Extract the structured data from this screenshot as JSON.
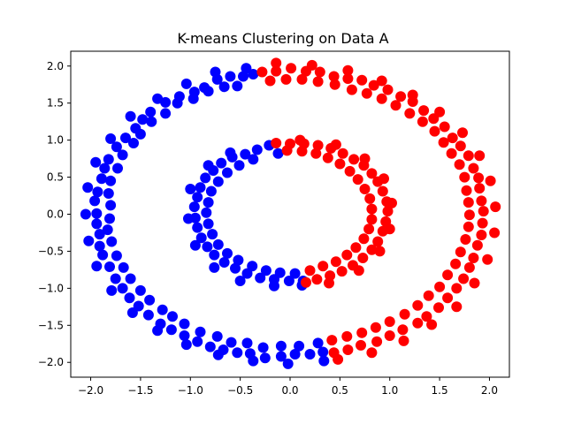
{
  "chart_data": {
    "type": "scatter",
    "title": "K-means Clustering on Data A",
    "xlabel": "",
    "ylabel": "",
    "xlim": [
      -2.2,
      2.2
    ],
    "ylim": [
      -2.2,
      2.2
    ],
    "xticks": [
      -2.0,
      -1.5,
      -1.0,
      -0.5,
      0.0,
      0.5,
      1.0,
      1.5,
      2.0
    ],
    "xtick_labels": [
      "−2.0",
      "−1.5",
      "−1.0",
      "−0.5",
      "0.0",
      "0.5",
      "1.0",
      "1.5",
      "2.0"
    ],
    "yticks": [
      -2.0,
      -1.5,
      -1.0,
      -0.5,
      0.0,
      0.5,
      1.0,
      1.5,
      2.0
    ],
    "ytick_labels": [
      "−2.0",
      "−1.5",
      "−1.0",
      "−0.5",
      "0.0",
      "0.5",
      "1.0",
      "1.5",
      "2.0"
    ],
    "grid": false,
    "legend": "none",
    "series": [
      {
        "color": "#0000ff",
        "points": [
          [
            -0.37,
            1.89
          ],
          [
            -0.47,
            1.86
          ],
          [
            -0.6,
            1.86
          ],
          [
            -0.73,
            1.82
          ],
          [
            -0.86,
            1.71
          ],
          [
            -0.96,
            1.65
          ],
          [
            -1.11,
            1.59
          ],
          [
            -1.25,
            1.51
          ],
          [
            -1.4,
            1.38
          ],
          [
            -1.48,
            1.28
          ],
          [
            -1.55,
            1.16
          ],
          [
            -1.65,
            1.03
          ],
          [
            -1.74,
            0.91
          ],
          [
            -1.82,
            0.74
          ],
          [
            -1.86,
            0.62
          ],
          [
            -1.89,
            0.48
          ],
          [
            -1.93,
            0.3
          ],
          [
            -1.96,
            0.18
          ],
          [
            -1.94,
            0.01
          ],
          [
            -1.94,
            -0.13
          ],
          [
            -1.91,
            -0.27
          ],
          [
            -1.91,
            -0.43
          ],
          [
            -1.88,
            -0.55
          ],
          [
            -1.81,
            -0.71
          ],
          [
            -1.75,
            -0.87
          ],
          [
            -1.68,
            -1.0
          ],
          [
            -1.61,
            -1.13
          ],
          [
            -1.52,
            -1.24
          ],
          [
            -1.42,
            -1.36
          ],
          [
            -1.3,
            -1.48
          ],
          [
            -1.19,
            -1.56
          ],
          [
            -1.06,
            -1.64
          ],
          [
            -0.93,
            -1.72
          ],
          [
            -0.8,
            -1.79
          ],
          [
            -0.67,
            -1.83
          ],
          [
            -0.53,
            -1.87
          ],
          [
            -0.4,
            -1.88
          ],
          [
            -0.25,
            -1.94
          ],
          [
            -0.09,
            -1.92
          ],
          [
            0.05,
            -1.89
          ],
          [
            0.2,
            -1.89
          ],
          [
            0.33,
            -1.86
          ],
          [
            -0.53,
            1.73
          ],
          [
            -0.66,
            1.72
          ],
          [
            -0.82,
            1.66
          ],
          [
            -0.97,
            1.56
          ],
          [
            -1.13,
            1.5
          ],
          [
            -1.25,
            1.36
          ],
          [
            -1.39,
            1.25
          ],
          [
            -1.5,
            1.08
          ],
          [
            -1.57,
            0.96
          ],
          [
            -1.68,
            0.8
          ],
          [
            -1.73,
            0.62
          ],
          [
            -1.8,
            0.45
          ],
          [
            -1.82,
            0.28
          ],
          [
            -1.8,
            0.12
          ],
          [
            -1.81,
            -0.06
          ],
          [
            -1.83,
            -0.21
          ],
          [
            -1.79,
            -0.37
          ],
          [
            -1.74,
            -0.56
          ],
          [
            -1.67,
            -0.72
          ],
          [
            -1.6,
            -0.87
          ],
          [
            -1.5,
            -1.03
          ],
          [
            -1.41,
            -1.16
          ],
          [
            -1.28,
            -1.29
          ],
          [
            -1.18,
            -1.38
          ],
          [
            -1.06,
            -1.48
          ],
          [
            -0.9,
            -1.59
          ],
          [
            -0.73,
            -1.65
          ],
          [
            -0.59,
            -1.73
          ],
          [
            -0.43,
            -1.74
          ],
          [
            -0.27,
            -1.8
          ],
          [
            -0.09,
            -1.78
          ],
          [
            0.09,
            -1.78
          ],
          [
            0.28,
            -1.74
          ],
          [
            -0.44,
            1.97
          ],
          [
            -0.75,
            1.92
          ],
          [
            -1.04,
            1.76
          ],
          [
            -1.33,
            1.56
          ],
          [
            -1.6,
            1.32
          ],
          [
            -1.8,
            1.02
          ],
          [
            -1.95,
            0.7
          ],
          [
            -2.03,
            0.36
          ],
          [
            -2.05,
            0.0
          ],
          [
            -2.02,
            -0.36
          ],
          [
            -1.94,
            -0.7
          ],
          [
            -1.79,
            -1.03
          ],
          [
            -1.58,
            -1.33
          ],
          [
            -1.33,
            -1.57
          ],
          [
            -1.04,
            -1.76
          ],
          [
            -0.72,
            -1.9
          ],
          [
            -0.37,
            -1.98
          ],
          [
            -0.02,
            -2.02
          ],
          [
            0.34,
            -1.98
          ],
          [
            -0.33,
            0.87
          ],
          [
            -0.45,
            0.81
          ],
          [
            -0.58,
            0.77
          ],
          [
            -0.69,
            0.69
          ],
          [
            -0.77,
            0.59
          ],
          [
            -0.85,
            0.49
          ],
          [
            -0.9,
            0.36
          ],
          [
            -0.93,
            0.23
          ],
          [
            -0.96,
            0.1
          ],
          [
            -0.95,
            -0.05
          ],
          [
            -0.93,
            -0.18
          ],
          [
            -0.89,
            -0.32
          ],
          [
            -0.83,
            -0.44
          ],
          [
            -0.76,
            -0.55
          ],
          [
            -0.66,
            -0.65
          ],
          [
            -0.55,
            -0.73
          ],
          [
            -0.43,
            -0.8
          ],
          [
            -0.3,
            -0.86
          ],
          [
            -0.16,
            -0.88
          ],
          [
            -0.01,
            -0.9
          ],
          [
            0.13,
            -0.9
          ],
          [
            -0.21,
            0.93
          ],
          [
            -0.37,
            0.74
          ],
          [
            -0.51,
            0.66
          ],
          [
            -0.63,
            0.56
          ],
          [
            -0.72,
            0.44
          ],
          [
            -0.79,
            0.31
          ],
          [
            -0.82,
            0.16
          ],
          [
            -0.84,
            0.02
          ],
          [
            -0.82,
            -0.13
          ],
          [
            -0.78,
            -0.27
          ],
          [
            -0.72,
            -0.41
          ],
          [
            -0.63,
            -0.53
          ],
          [
            -0.52,
            -0.62
          ],
          [
            -0.38,
            -0.7
          ],
          [
            -0.24,
            -0.76
          ],
          [
            -0.1,
            -0.79
          ],
          [
            0.05,
            -0.8
          ],
          [
            -0.12,
            0.82
          ],
          [
            -0.6,
            0.83
          ],
          [
            -0.82,
            0.66
          ],
          [
            -1.0,
            0.34
          ],
          [
            -1.02,
            -0.06
          ],
          [
            -0.95,
            -0.42
          ],
          [
            -0.76,
            -0.72
          ],
          [
            -0.5,
            -0.9
          ],
          [
            -0.16,
            -0.97
          ],
          [
            0.12,
            -0.96
          ]
        ]
      },
      {
        "color": "#ff0000",
        "points": [
          [
            -0.28,
            1.92
          ],
          [
            -0.14,
            1.93
          ],
          [
            0.01,
            1.97
          ],
          [
            0.16,
            1.93
          ],
          [
            0.3,
            1.92
          ],
          [
            0.44,
            1.86
          ],
          [
            0.58,
            1.83
          ],
          [
            0.72,
            1.81
          ],
          [
            0.84,
            1.74
          ],
          [
            0.98,
            1.68
          ],
          [
            1.11,
            1.59
          ],
          [
            1.23,
            1.52
          ],
          [
            1.34,
            1.4
          ],
          [
            1.44,
            1.29
          ],
          [
            1.55,
            1.18
          ],
          [
            1.63,
            1.03
          ],
          [
            1.71,
            0.92
          ],
          [
            1.79,
            0.79
          ],
          [
            1.84,
            0.62
          ],
          [
            1.89,
            0.49
          ],
          [
            1.9,
            0.35
          ],
          [
            1.92,
            0.18
          ],
          [
            1.94,
            0.04
          ],
          [
            1.93,
            -0.12
          ],
          [
            1.92,
            -0.28
          ],
          [
            1.88,
            -0.42
          ],
          [
            1.84,
            -0.59
          ],
          [
            1.8,
            -0.72
          ],
          [
            1.74,
            -0.87
          ],
          [
            1.67,
            -1.0
          ],
          [
            1.58,
            -1.13
          ],
          [
            1.49,
            -1.26
          ],
          [
            1.37,
            -1.38
          ],
          [
            1.28,
            -1.47
          ],
          [
            1.13,
            -1.56
          ],
          [
            1.0,
            -1.64
          ],
          [
            0.87,
            -1.72
          ],
          [
            0.71,
            -1.77
          ],
          [
            0.58,
            -1.83
          ],
          [
            0.44,
            -1.87
          ],
          [
            -0.2,
            1.8
          ],
          [
            -0.04,
            1.82
          ],
          [
            0.12,
            1.82
          ],
          [
            0.28,
            1.79
          ],
          [
            0.45,
            1.75
          ],
          [
            0.62,
            1.68
          ],
          [
            0.77,
            1.63
          ],
          [
            0.92,
            1.56
          ],
          [
            1.06,
            1.47
          ],
          [
            1.2,
            1.36
          ],
          [
            1.33,
            1.25
          ],
          [
            1.45,
            1.12
          ],
          [
            1.54,
            0.97
          ],
          [
            1.62,
            0.82
          ],
          [
            1.7,
            0.67
          ],
          [
            1.75,
            0.5
          ],
          [
            1.77,
            0.32
          ],
          [
            1.79,
            0.16
          ],
          [
            1.8,
            -0.01
          ],
          [
            1.79,
            -0.17
          ],
          [
            1.76,
            -0.34
          ],
          [
            1.71,
            -0.51
          ],
          [
            1.66,
            -0.67
          ],
          [
            1.58,
            -0.82
          ],
          [
            1.5,
            -0.98
          ],
          [
            1.39,
            -1.1
          ],
          [
            1.28,
            -1.23
          ],
          [
            1.15,
            -1.35
          ],
          [
            1.0,
            -1.45
          ],
          [
            0.86,
            -1.53
          ],
          [
            0.72,
            -1.6
          ],
          [
            0.57,
            -1.65
          ],
          [
            0.42,
            -1.7
          ],
          [
            -0.14,
            2.04
          ],
          [
            0.22,
            2.01
          ],
          [
            0.58,
            1.94
          ],
          [
            0.92,
            1.8
          ],
          [
            1.23,
            1.61
          ],
          [
            1.5,
            1.38
          ],
          [
            1.73,
            1.1
          ],
          [
            1.9,
            0.79
          ],
          [
            2.01,
            0.45
          ],
          [
            2.06,
            0.1
          ],
          [
            2.05,
            -0.25
          ],
          [
            1.98,
            -0.61
          ],
          [
            1.85,
            -0.93
          ],
          [
            1.67,
            -1.25
          ],
          [
            1.42,
            -1.49
          ],
          [
            1.14,
            -1.71
          ],
          [
            0.82,
            -1.87
          ],
          [
            0.48,
            -1.96
          ],
          [
            -0.14,
            0.96
          ],
          [
            0.0,
            0.95
          ],
          [
            0.14,
            0.95
          ],
          [
            0.28,
            0.93
          ],
          [
            0.41,
            0.89
          ],
          [
            0.53,
            0.82
          ],
          [
            0.64,
            0.74
          ],
          [
            0.74,
            0.66
          ],
          [
            0.82,
            0.55
          ],
          [
            0.88,
            0.44
          ],
          [
            0.93,
            0.31
          ],
          [
            0.97,
            0.17
          ],
          [
            0.98,
            0.04
          ],
          [
            0.96,
            -0.1
          ],
          [
            0.93,
            -0.23
          ],
          [
            0.88,
            -0.37
          ],
          [
            0.82,
            -0.48
          ],
          [
            0.73,
            -0.59
          ],
          [
            0.63,
            -0.69
          ],
          [
            0.52,
            -0.77
          ],
          [
            0.4,
            -0.83
          ],
          [
            0.27,
            -0.88
          ],
          [
            0.16,
            -0.92
          ],
          [
            -0.03,
            0.86
          ],
          [
            0.12,
            0.85
          ],
          [
            0.26,
            0.82
          ],
          [
            0.38,
            0.76
          ],
          [
            0.5,
            0.68
          ],
          [
            0.6,
            0.58
          ],
          [
            0.68,
            0.47
          ],
          [
            0.75,
            0.34
          ],
          [
            0.8,
            0.21
          ],
          [
            0.82,
            0.07
          ],
          [
            0.82,
            -0.07
          ],
          [
            0.79,
            -0.2
          ],
          [
            0.74,
            -0.33
          ],
          [
            0.66,
            -0.45
          ],
          [
            0.57,
            -0.55
          ],
          [
            0.46,
            -0.64
          ],
          [
            0.33,
            -0.7
          ],
          [
            0.2,
            -0.76
          ],
          [
            0.1,
            1.0
          ],
          [
            0.46,
            0.94
          ],
          [
            0.75,
            0.75
          ],
          [
            0.94,
            0.48
          ],
          [
            1.02,
            0.15
          ],
          [
            1.0,
            -0.2
          ],
          [
            0.9,
            -0.5
          ],
          [
            0.69,
            -0.76
          ],
          [
            0.39,
            -0.93
          ]
        ]
      }
    ]
  }
}
